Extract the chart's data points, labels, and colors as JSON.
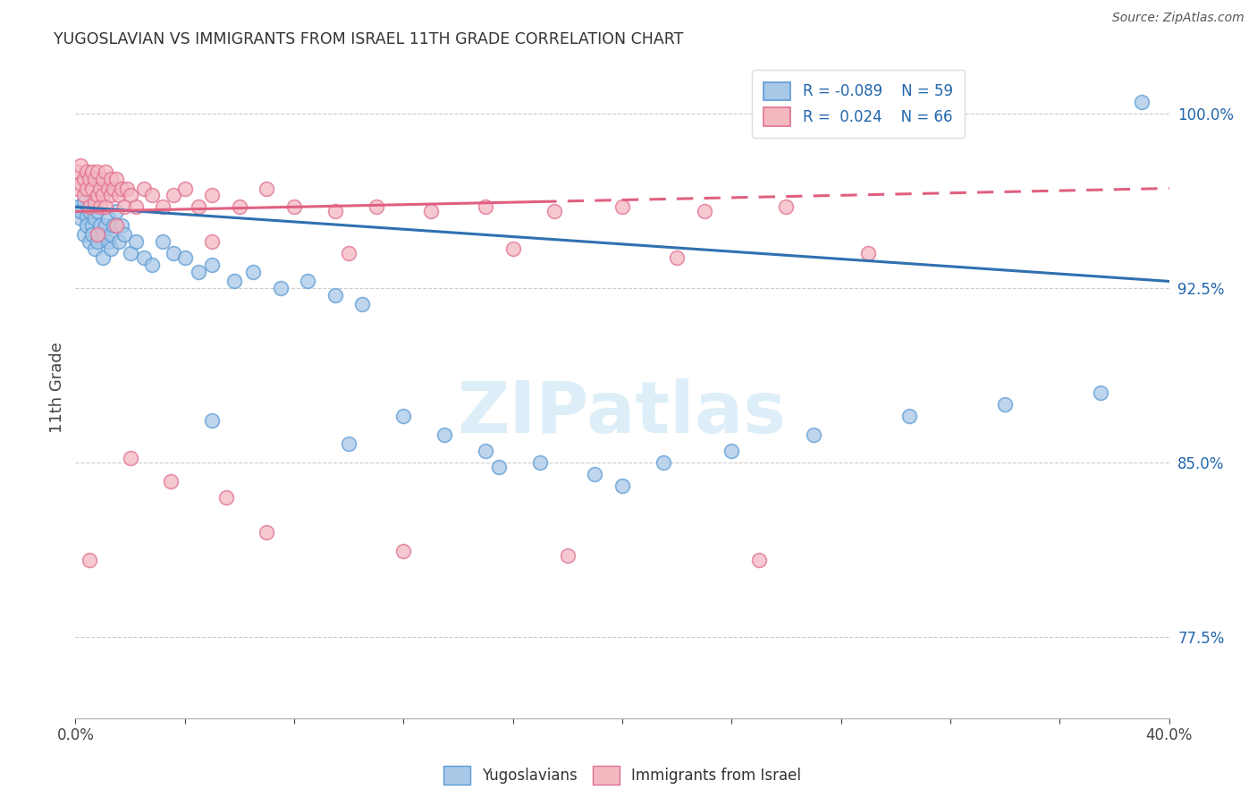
{
  "title": "YUGOSLAVIAN VS IMMIGRANTS FROM ISRAEL 11TH GRADE CORRELATION CHART",
  "source": "Source: ZipAtlas.com",
  "ylabel": "11th Grade",
  "ytick_labels": [
    "77.5%",
    "85.0%",
    "92.5%",
    "100.0%"
  ],
  "ytick_values": [
    0.775,
    0.85,
    0.925,
    1.0
  ],
  "legend_blue_label": "Yugoslavians",
  "legend_pink_label": "Immigrants from Israel",
  "legend_blue_r": "R = -0.089",
  "legend_blue_n": "N = 59",
  "legend_pink_r": "R =  0.024",
  "legend_pink_n": "N = 66",
  "blue_color": "#a8c8e8",
  "blue_edge_color": "#5b9bd5",
  "pink_color": "#f4b8c1",
  "pink_edge_color": "#e07090",
  "blue_line_color": "#3070b0",
  "pink_line_color": "#e06080",
  "watermark_color": "#ddeef8",
  "xmin": 0.0,
  "xmax": 0.4,
  "ymin": 0.74,
  "ymax": 1.025,
  "blue_scatter_x": [
    0.001,
    0.002,
    0.002,
    0.003,
    0.003,
    0.004,
    0.004,
    0.005,
    0.005,
    0.006,
    0.006,
    0.007,
    0.007,
    0.008,
    0.008,
    0.009,
    0.01,
    0.01,
    0.011,
    0.012,
    0.012,
    0.013,
    0.013,
    0.014,
    0.015,
    0.016,
    0.017,
    0.018,
    0.02,
    0.022,
    0.025,
    0.028,
    0.032,
    0.036,
    0.04,
    0.045,
    0.05,
    0.058,
    0.065,
    0.075,
    0.085,
    0.095,
    0.105,
    0.12,
    0.135,
    0.15,
    0.17,
    0.19,
    0.215,
    0.24,
    0.27,
    0.305,
    0.34,
    0.375,
    0.05,
    0.1,
    0.155,
    0.2,
    0.39
  ],
  "blue_scatter_y": [
    0.96,
    0.955,
    0.958,
    0.962,
    0.948,
    0.956,
    0.952,
    0.958,
    0.945,
    0.952,
    0.948,
    0.955,
    0.942,
    0.958,
    0.945,
    0.952,
    0.948,
    0.938,
    0.952,
    0.945,
    0.955,
    0.942,
    0.948,
    0.952,
    0.958,
    0.945,
    0.952,
    0.948,
    0.94,
    0.945,
    0.938,
    0.935,
    0.945,
    0.94,
    0.938,
    0.932,
    0.935,
    0.928,
    0.932,
    0.925,
    0.928,
    0.922,
    0.918,
    0.87,
    0.862,
    0.855,
    0.85,
    0.845,
    0.85,
    0.855,
    0.862,
    0.87,
    0.875,
    0.88,
    0.868,
    0.858,
    0.848,
    0.84,
    1.005
  ],
  "pink_scatter_x": [
    0.001,
    0.001,
    0.002,
    0.002,
    0.003,
    0.003,
    0.004,
    0.004,
    0.005,
    0.005,
    0.006,
    0.006,
    0.007,
    0.007,
    0.008,
    0.008,
    0.009,
    0.009,
    0.01,
    0.01,
    0.011,
    0.011,
    0.012,
    0.013,
    0.013,
    0.014,
    0.015,
    0.016,
    0.017,
    0.018,
    0.019,
    0.02,
    0.022,
    0.025,
    0.028,
    0.032,
    0.036,
    0.04,
    0.045,
    0.05,
    0.06,
    0.07,
    0.08,
    0.095,
    0.11,
    0.13,
    0.15,
    0.175,
    0.2,
    0.23,
    0.26,
    0.008,
    0.015,
    0.05,
    0.1,
    0.16,
    0.22,
    0.29,
    0.005,
    0.02,
    0.035,
    0.055,
    0.07,
    0.12,
    0.18,
    0.25
  ],
  "pink_scatter_y": [
    0.975,
    0.968,
    0.978,
    0.97,
    0.972,
    0.965,
    0.975,
    0.968,
    0.972,
    0.96,
    0.968,
    0.975,
    0.962,
    0.972,
    0.965,
    0.975,
    0.968,
    0.96,
    0.972,
    0.965,
    0.975,
    0.96,
    0.968,
    0.972,
    0.965,
    0.968,
    0.972,
    0.965,
    0.968,
    0.96,
    0.968,
    0.965,
    0.96,
    0.968,
    0.965,
    0.96,
    0.965,
    0.968,
    0.96,
    0.965,
    0.96,
    0.968,
    0.96,
    0.958,
    0.96,
    0.958,
    0.96,
    0.958,
    0.96,
    0.958,
    0.96,
    0.948,
    0.952,
    0.945,
    0.94,
    0.942,
    0.938,
    0.94,
    0.808,
    0.852,
    0.842,
    0.835,
    0.82,
    0.812,
    0.81,
    0.808
  ]
}
